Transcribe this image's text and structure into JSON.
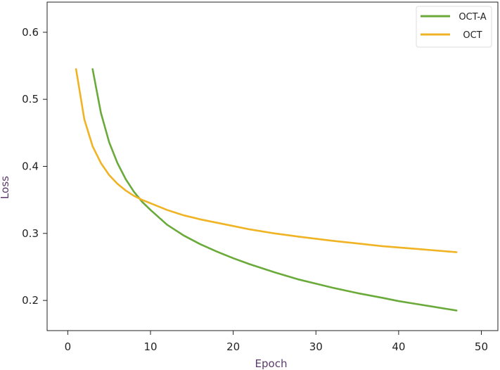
{
  "chart_data": {
    "type": "line",
    "title": "",
    "xlabel": "Epoch",
    "ylabel": "Loss",
    "xlim": [
      -2.5,
      52
    ],
    "ylim": [
      0.155,
      0.645
    ],
    "xticks": [
      0,
      10,
      20,
      30,
      40,
      50
    ],
    "yticks": [
      0.2,
      0.3,
      0.4,
      0.5,
      0.6
    ],
    "grid": false,
    "legend_position": "top-right",
    "series": [
      {
        "name": "OCT-A",
        "color": "#6aaa3a",
        "x": [
          3,
          4,
          5,
          6,
          7,
          8,
          9,
          10,
          12,
          14,
          16,
          18,
          20,
          22,
          25,
          28,
          30,
          32,
          35,
          38,
          40,
          42,
          44,
          46,
          47
        ],
        "y": [
          0.545,
          0.48,
          0.436,
          0.405,
          0.381,
          0.362,
          0.347,
          0.335,
          0.313,
          0.297,
          0.284,
          0.273,
          0.263,
          0.254,
          0.242,
          0.231,
          0.225,
          0.219,
          0.211,
          0.204,
          0.199,
          0.195,
          0.191,
          0.187,
          0.185
        ]
      },
      {
        "name": "OCT",
        "color": "#f0b323",
        "x": [
          1,
          2,
          3,
          4,
          5,
          6,
          7,
          8,
          9,
          10,
          12,
          14,
          16,
          18,
          20,
          22,
          25,
          28,
          30,
          32,
          35,
          38,
          40,
          42,
          44,
          46,
          47
        ],
        "y": [
          0.545,
          0.47,
          0.43,
          0.405,
          0.387,
          0.374,
          0.364,
          0.356,
          0.35,
          0.345,
          0.335,
          0.327,
          0.321,
          0.316,
          0.311,
          0.306,
          0.3,
          0.295,
          0.292,
          0.289,
          0.285,
          0.281,
          0.279,
          0.277,
          0.275,
          0.273,
          0.272
        ]
      }
    ]
  }
}
